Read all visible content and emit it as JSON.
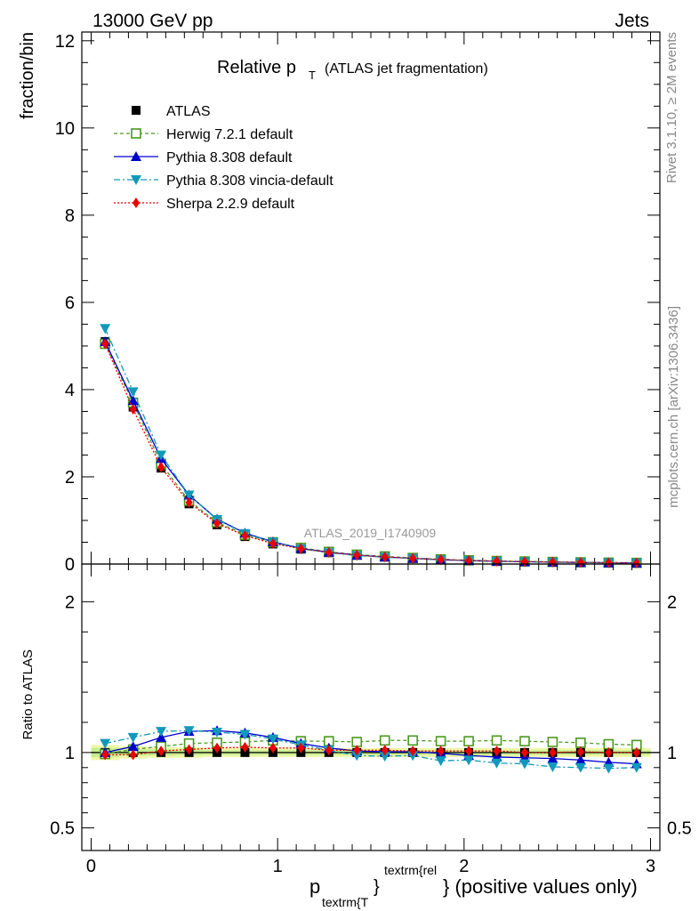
{
  "header": {
    "left": "13000 GeV pp",
    "right": "Jets"
  },
  "plot_title": {
    "main": "Relative p",
    "sub": "T",
    "paren": "(ATLAS jet fragmentation)"
  },
  "side_labels": {
    "rivet": "Rivet 3.1.10, ≥ 2M events",
    "mcplots": "mcplots.cern.ch [arXiv:1306.3436]"
  },
  "watermark": "ATLAS_2019_I1740909",
  "colors": {
    "ATLAS": "#000000",
    "Herwig": "#4a9a1e",
    "Pythia": "#0000cc",
    "Vincia": "#1199bb",
    "Sherpa": "#ee0000",
    "band_outer": "#eef7a8",
    "band_inner": "#c6ec8e"
  },
  "chart_data": [
    {
      "type": "scatter",
      "name": "main",
      "ylabel": "fraction/bin",
      "ylim": [
        0,
        12.2
      ],
      "yticks": [
        0,
        2,
        4,
        6,
        8,
        10,
        12
      ],
      "ytick_labels": [
        "0",
        "2",
        "4",
        "6",
        "8",
        "10",
        "12"
      ],
      "xlim": [
        -0.05,
        3.05
      ],
      "x": [
        0.075,
        0.225,
        0.375,
        0.525,
        0.675,
        0.825,
        0.975,
        1.125,
        1.275,
        1.425,
        1.575,
        1.725,
        1.875,
        2.025,
        2.175,
        2.325,
        2.475,
        2.625,
        2.775,
        2.925
      ],
      "legend": [
        "ATLAS",
        "Herwig 7.2.1 default",
        "Pythia 8.308 default",
        "Pythia 8.308 vincia-default",
        "Sherpa 2.2.9 default"
      ],
      "legend_position": "top-left",
      "series": [
        {
          "name": "ATLAS",
          "key": "ATLAS",
          "marker": "square",
          "values": [
            5.1,
            3.6,
            2.2,
            1.38,
            0.9,
            0.63,
            0.46,
            0.34,
            0.26,
            0.2,
            0.16,
            0.13,
            0.1,
            0.08,
            0.066,
            0.055,
            0.046,
            0.038,
            0.031,
            0.026
          ]
        },
        {
          "name": "Herwig 7.2.1 default",
          "key": "Herwig",
          "marker": "open-square",
          "dash": "4,3",
          "values": [
            5.05,
            3.7,
            2.3,
            1.45,
            0.96,
            0.67,
            0.5,
            0.37,
            0.28,
            0.215,
            0.175,
            0.14,
            0.108,
            0.086,
            0.071,
            0.059,
            0.049,
            0.04,
            0.033,
            0.027
          ]
        },
        {
          "name": "Pythia 8.308 default",
          "key": "Pythia",
          "marker": "triangle-up",
          "dash": "",
          "values": [
            5.1,
            3.75,
            2.42,
            1.58,
            1.03,
            0.71,
            0.51,
            0.36,
            0.27,
            0.205,
            0.16,
            0.13,
            0.1,
            0.078,
            0.064,
            0.053,
            0.044,
            0.036,
            0.029,
            0.024
          ]
        },
        {
          "name": "Pythia 8.308 vincia-default",
          "key": "Vincia",
          "marker": "triangle-down",
          "dash": "7,3,2,3",
          "values": [
            5.4,
            3.95,
            2.5,
            1.58,
            1.02,
            0.7,
            0.5,
            0.35,
            0.26,
            0.195,
            0.155,
            0.127,
            0.095,
            0.076,
            0.062,
            0.05,
            0.042,
            0.034,
            0.028,
            0.023
          ]
        },
        {
          "name": "Sherpa 2.2.9 default",
          "key": "Sherpa",
          "marker": "diamond",
          "dash": "2,2",
          "values": [
            5.05,
            3.55,
            2.22,
            1.41,
            0.93,
            0.65,
            0.47,
            0.35,
            0.265,
            0.203,
            0.163,
            0.131,
            0.101,
            0.081,
            0.067,
            0.055,
            0.046,
            0.038,
            0.031,
            0.026
          ]
        }
      ]
    },
    {
      "type": "scatter",
      "name": "ratio",
      "ylabel": "Ratio to ATLAS",
      "ylim": [
        0.35,
        2.25
      ],
      "yticks": [
        0.5,
        1,
        2
      ],
      "ytick_labels": [
        "0.5",
        "1",
        "2"
      ],
      "xlim": [
        -0.05,
        3.05
      ],
      "xticks": [
        0,
        1,
        2,
        3
      ],
      "xtick_labels": [
        "0",
        "1",
        "2",
        "3"
      ],
      "xlabel": {
        "p": "p",
        "sub": "textrm{T",
        "sup": "textrm{rel",
        "brace": "}",
        "tail": "} (positive values only)"
      },
      "x": [
        0.075,
        0.225,
        0.375,
        0.525,
        0.675,
        0.825,
        0.975,
        1.125,
        1.275,
        1.425,
        1.575,
        1.725,
        1.875,
        2.025,
        2.175,
        2.325,
        2.475,
        2.625,
        2.775,
        2.925
      ],
      "band_outer": [
        0.05,
        0.04,
        0.035,
        0.035,
        0.03,
        0.03,
        0.03,
        0.03,
        0.03,
        0.03,
        0.03,
        0.03,
        0.03,
        0.03,
        0.03,
        0.03,
        0.03,
        0.03,
        0.03,
        0.03
      ],
      "band_inner": [
        0.03,
        0.02,
        0.02,
        0.018,
        0.015,
        0.015,
        0.015,
        0.015,
        0.015,
        0.015,
        0.015,
        0.015,
        0.015,
        0.015,
        0.015,
        0.015,
        0.015,
        0.015,
        0.015,
        0.015
      ],
      "series": [
        {
          "name": "Herwig 7.2.1 default",
          "key": "Herwig",
          "marker": "open-square",
          "dash": "4,3",
          "values": [
            0.99,
            1.02,
            1.04,
            1.06,
            1.065,
            1.07,
            1.08,
            1.075,
            1.075,
            1.07,
            1.08,
            1.08,
            1.075,
            1.075,
            1.08,
            1.075,
            1.07,
            1.065,
            1.055,
            1.05
          ]
        },
        {
          "name": "Pythia 8.308 default",
          "key": "Pythia",
          "marker": "triangle-up",
          "dash": "",
          "values": [
            1.0,
            1.04,
            1.1,
            1.14,
            1.145,
            1.13,
            1.1,
            1.06,
            1.03,
            1.01,
            1.005,
            1.005,
            0.995,
            0.98,
            0.97,
            0.965,
            0.96,
            0.95,
            0.935,
            0.925
          ]
        },
        {
          "name": "Pythia 8.308 vincia-default",
          "key": "Vincia",
          "marker": "triangle-down",
          "dash": "7,3,2,3",
          "values": [
            1.06,
            1.1,
            1.14,
            1.145,
            1.135,
            1.12,
            1.09,
            1.05,
            1.015,
            0.98,
            0.975,
            0.98,
            0.945,
            0.95,
            0.93,
            0.925,
            0.905,
            0.9,
            0.895,
            0.9
          ]
        },
        {
          "name": "Sherpa 2.2.9 default",
          "key": "Sherpa",
          "marker": "diamond",
          "dash": "2,2",
          "values": [
            0.985,
            0.985,
            1.01,
            1.02,
            1.03,
            1.035,
            1.03,
            1.03,
            1.015,
            1.015,
            1.015,
            1.01,
            1.01,
            1.01,
            1.01,
            1.0,
            1.0,
            1.005,
            1.0,
            1.0
          ]
        }
      ]
    }
  ]
}
